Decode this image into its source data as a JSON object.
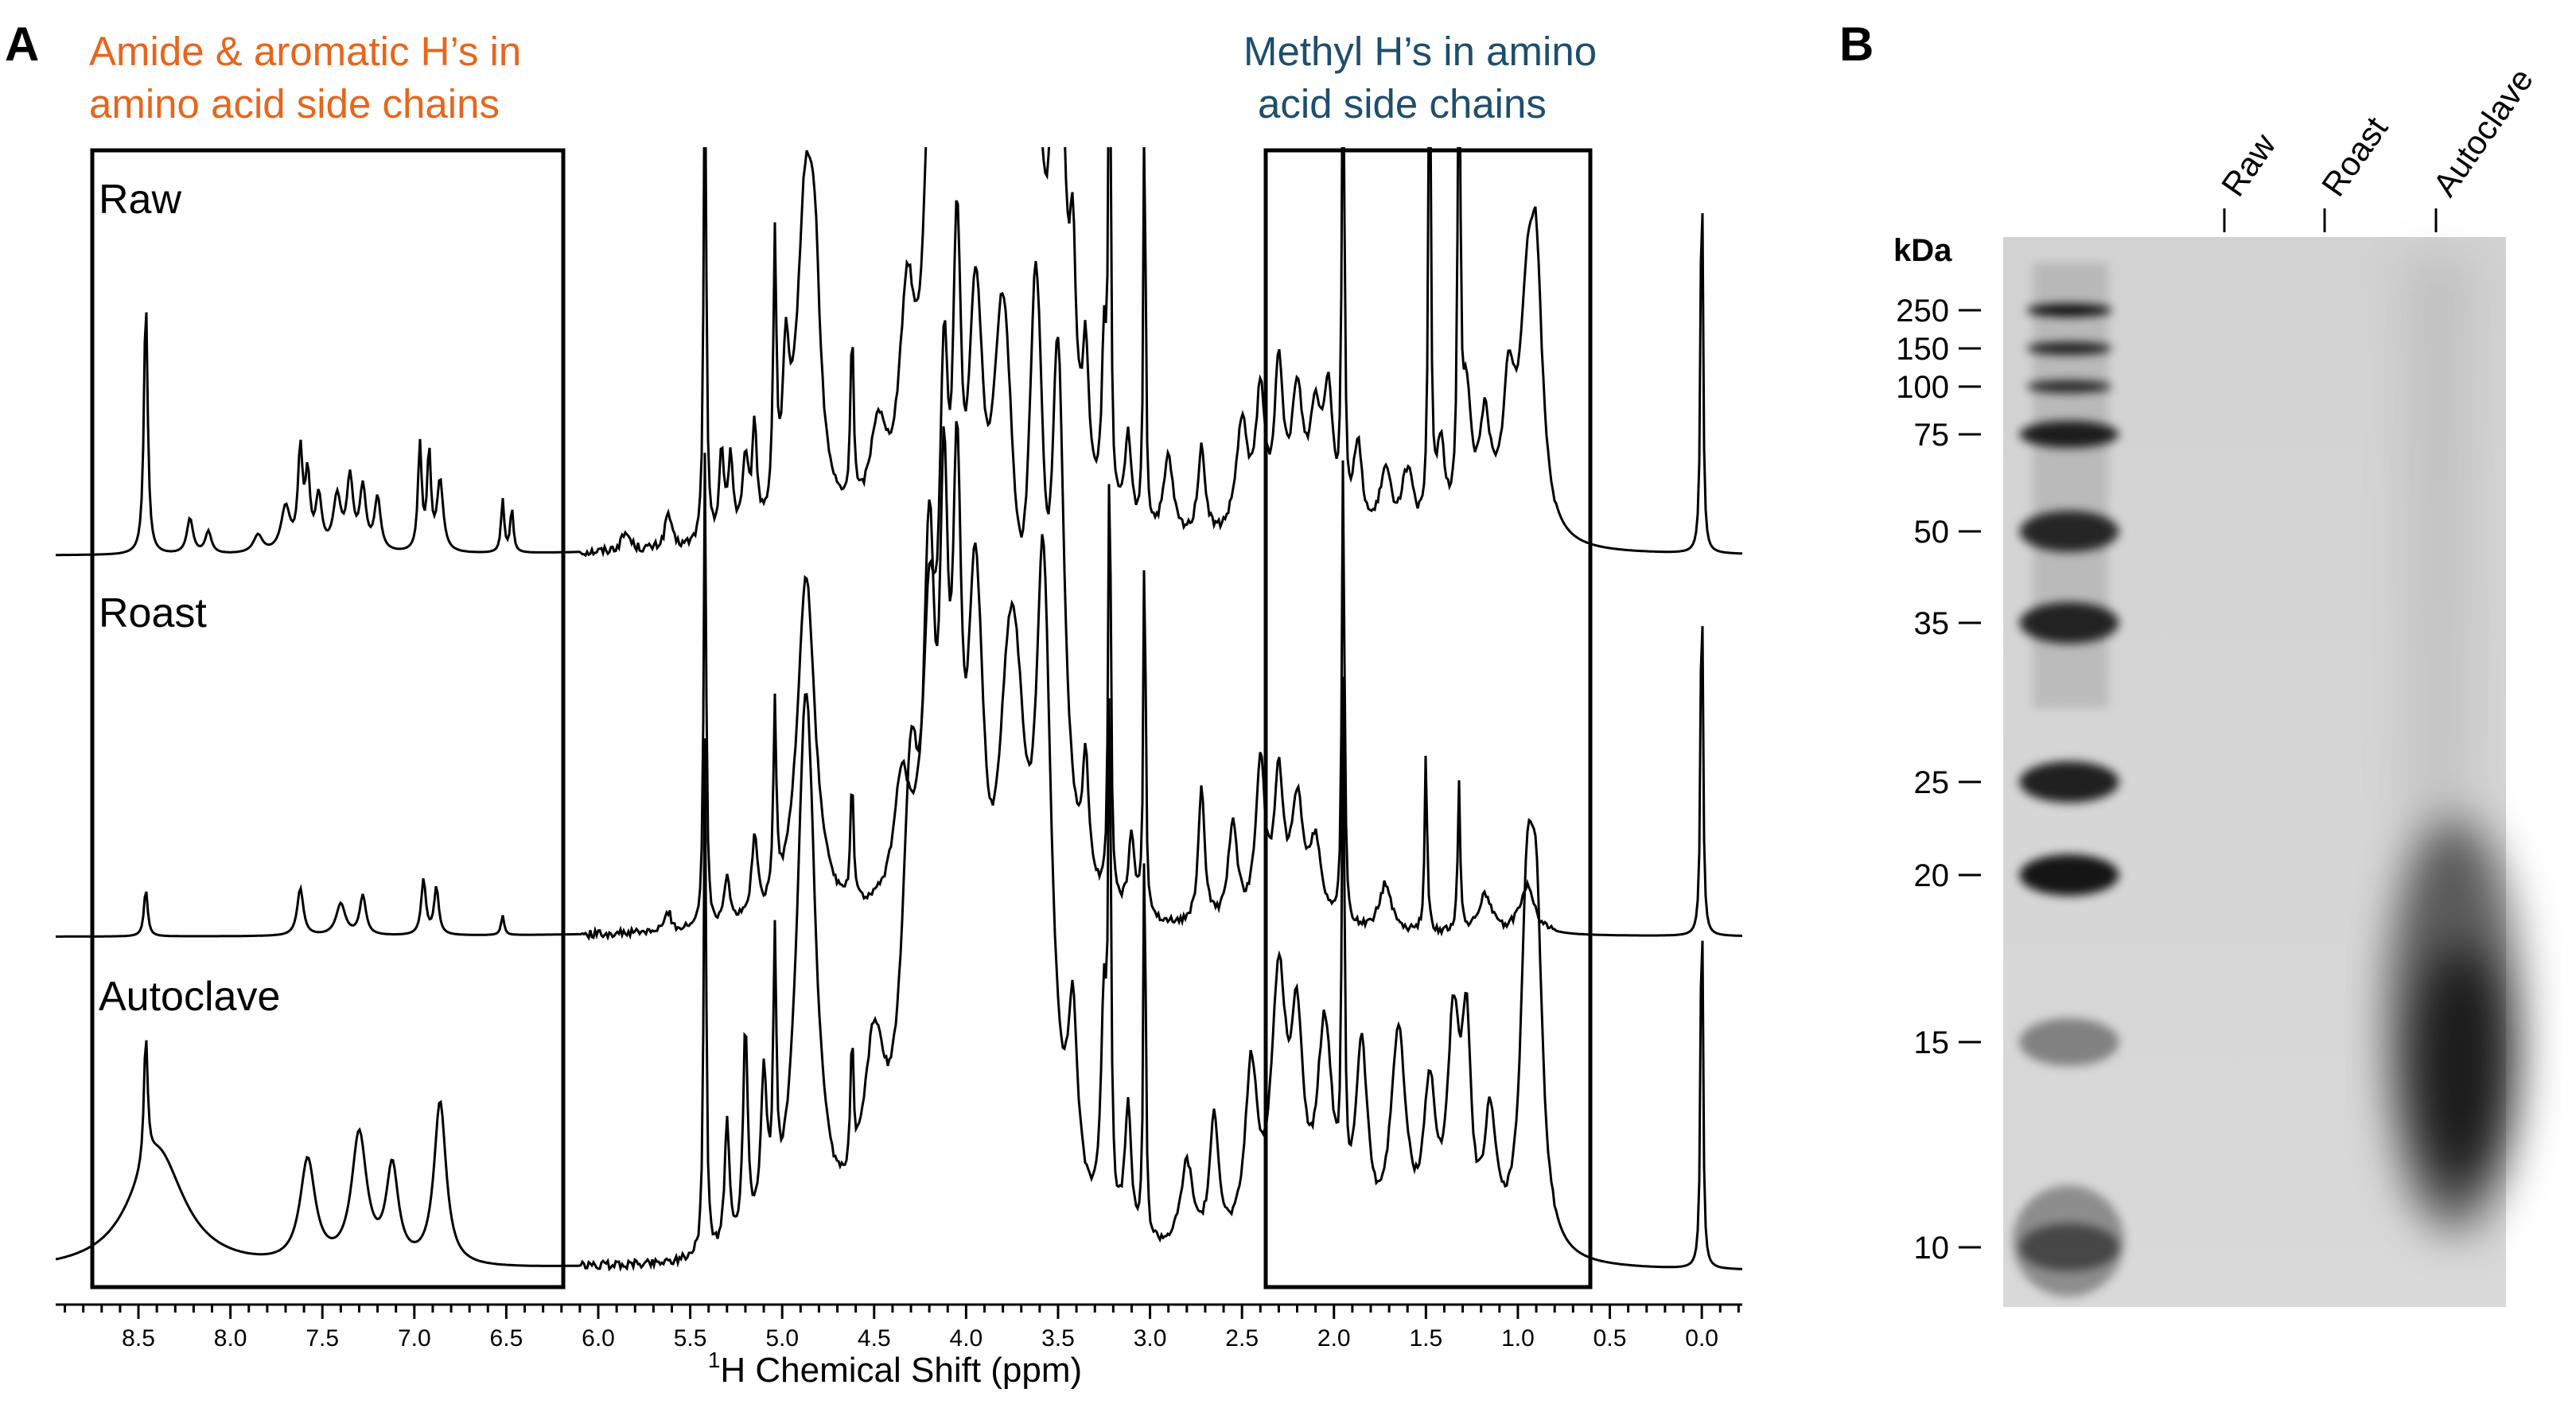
{
  "panel_a": {
    "label": "A",
    "annotation_left_line1": "Amide & aromatic H’s in",
    "annotation_left_line2": "amino acid side chains",
    "annotation_right_line1": "Methyl H’s in amino",
    "annotation_right_line2": "acid side chains",
    "colors": {
      "left_annotation": "#e8651b",
      "right_annotation": "#1d4e6e",
      "trace": "#000000"
    }
  },
  "panel_b": {
    "label": "B",
    "unit_label": "kDa",
    "lanes": [
      "Raw",
      "Roast",
      "Autoclave"
    ]
  },
  "chart_data": [
    {
      "type": "line",
      "title": "",
      "xlabel": "1H Chemical Shift (ppm)",
      "xlabel_sup": "1",
      "xlabel_rest": "H Chemical Shift (ppm)",
      "xlim": [
        8.95,
        -0.22
      ],
      "x_ticks": [
        8.5,
        8.0,
        7.5,
        7.0,
        6.5,
        6.0,
        5.5,
        5.0,
        4.5,
        4.0,
        3.5,
        3.0,
        2.5,
        2.0,
        1.5,
        1.0,
        0.5,
        0.0
      ],
      "x_tick_labels": [
        "8.5",
        "8.0",
        "7.5",
        "7.0",
        "6.5",
        "6.0",
        "5.5",
        "5.0",
        "4.5",
        "4.0",
        "3.5",
        "3.0",
        "2.5",
        "2.0",
        "1.5",
        "1.0",
        "0.5",
        "0.0"
      ],
      "series": [
        {
          "name": "Raw",
          "baseline": 0.02,
          "peaks": [
            [
              8.46,
              0.012,
              0.58
            ],
            [
              8.22,
              0.02,
              0.08
            ],
            [
              8.12,
              0.02,
              0.05
            ],
            [
              7.85,
              0.03,
              0.04
            ],
            [
              7.7,
              0.03,
              0.1
            ],
            [
              7.62,
              0.015,
              0.22
            ],
            [
              7.58,
              0.015,
              0.16
            ],
            [
              7.52,
              0.02,
              0.12
            ],
            [
              7.42,
              0.025,
              0.12
            ],
            [
              7.35,
              0.02,
              0.16
            ],
            [
              7.28,
              0.02,
              0.14
            ],
            [
              7.2,
              0.02,
              0.12
            ],
            [
              6.97,
              0.012,
              0.24
            ],
            [
              6.92,
              0.012,
              0.22
            ],
            [
              6.86,
              0.02,
              0.16
            ],
            [
              6.52,
              0.01,
              0.12
            ],
            [
              6.47,
              0.01,
              0.1
            ],
            [
              5.85,
              0.03,
              0.04
            ],
            [
              5.62,
              0.02,
              0.08
            ],
            [
              5.42,
              0.008,
              1.2
            ],
            [
              5.33,
              0.015,
              0.2
            ],
            [
              5.28,
              0.015,
              0.18
            ],
            [
              5.2,
              0.02,
              0.16
            ],
            [
              5.15,
              0.015,
              0.22
            ],
            [
              5.04,
              0.01,
              0.6
            ],
            [
              4.98,
              0.02,
              0.3
            ],
            [
              4.87,
              0.06,
              0.78
            ],
            [
              4.82,
              0.03,
              0.3
            ],
            [
              4.62,
              0.01,
              0.4
            ],
            [
              4.48,
              0.05,
              0.2
            ],
            [
              4.32,
              0.05,
              0.45
            ],
            [
              4.2,
              0.04,
              0.7
            ],
            [
              4.12,
              0.03,
              1.0
            ],
            [
              4.05,
              0.03,
              1.2
            ],
            [
              3.95,
              0.06,
              1.2
            ],
            [
              3.8,
              0.08,
              1.3
            ],
            [
              3.65,
              0.05,
              1.3
            ],
            [
              3.5,
              0.04,
              1.2
            ],
            [
              3.42,
              0.02,
              0.4
            ],
            [
              3.35,
              0.02,
              0.3
            ],
            [
              3.25,
              0.015,
              0.35
            ],
            [
              3.22,
              0.008,
              1.2
            ],
            [
              3.12,
              0.02,
              0.2
            ],
            [
              3.03,
              0.007,
              1.0
            ],
            [
              2.9,
              0.03,
              0.18
            ],
            [
              2.72,
              0.025,
              0.2
            ],
            [
              2.5,
              0.04,
              0.25
            ],
            [
              2.4,
              0.03,
              0.3
            ],
            [
              2.3,
              0.03,
              0.35
            ],
            [
              2.2,
              0.04,
              0.3
            ],
            [
              2.1,
              0.04,
              0.25
            ],
            [
              2.03,
              0.03,
              0.3
            ],
            [
              1.95,
              0.008,
              1.2
            ],
            [
              1.87,
              0.03,
              0.2
            ],
            [
              1.72,
              0.04,
              0.15
            ],
            [
              1.6,
              0.04,
              0.15
            ],
            [
              1.48,
              0.008,
              1.2
            ],
            [
              1.42,
              0.03,
              0.2
            ],
            [
              1.32,
              0.008,
              1.2
            ],
            [
              1.28,
              0.03,
              0.3
            ],
            [
              1.18,
              0.04,
              0.25
            ],
            [
              1.05,
              0.04,
              0.3
            ],
            [
              0.95,
              0.05,
              0.45
            ],
            [
              0.9,
              0.04,
              0.5
            ],
            [
              0.0,
              0.007,
              0.98
            ]
          ]
        },
        {
          "name": "Roast",
          "baseline": 0.02,
          "peaks": [
            [
              8.46,
              0.012,
              0.12
            ],
            [
              7.62,
              0.02,
              0.12
            ],
            [
              7.4,
              0.03,
              0.08
            ],
            [
              7.28,
              0.02,
              0.1
            ],
            [
              6.95,
              0.015,
              0.14
            ],
            [
              6.88,
              0.015,
              0.12
            ],
            [
              6.52,
              0.01,
              0.05
            ],
            [
              5.62,
              0.02,
              0.05
            ],
            [
              5.42,
              0.008,
              1.2
            ],
            [
              5.3,
              0.02,
              0.12
            ],
            [
              5.15,
              0.02,
              0.2
            ],
            [
              5.04,
              0.01,
              0.48
            ],
            [
              4.87,
              0.06,
              0.88
            ],
            [
              4.62,
              0.01,
              0.3
            ],
            [
              4.35,
              0.05,
              0.3
            ],
            [
              4.2,
              0.04,
              0.6
            ],
            [
              4.12,
              0.03,
              1.0
            ],
            [
              4.05,
              0.03,
              1.2
            ],
            [
              3.95,
              0.06,
              1.2
            ],
            [
              3.8,
              0.08,
              1.3
            ],
            [
              3.62,
              0.05,
              1.3
            ],
            [
              3.5,
              0.04,
              1.2
            ],
            [
              3.35,
              0.02,
              0.3
            ],
            [
              3.22,
              0.008,
              1.2
            ],
            [
              3.1,
              0.02,
              0.2
            ],
            [
              3.03,
              0.007,
              1.0
            ],
            [
              2.72,
              0.02,
              0.35
            ],
            [
              2.55,
              0.03,
              0.25
            ],
            [
              2.4,
              0.03,
              0.4
            ],
            [
              2.3,
              0.03,
              0.35
            ],
            [
              2.2,
              0.04,
              0.3
            ],
            [
              2.1,
              0.04,
              0.2
            ],
            [
              1.95,
              0.008,
              1.2
            ],
            [
              1.72,
              0.04,
              0.12
            ],
            [
              1.5,
              0.008,
              0.45
            ],
            [
              1.32,
              0.008,
              0.38
            ],
            [
              1.18,
              0.04,
              0.1
            ],
            [
              0.95,
              0.05,
              0.12
            ],
            [
              0.0,
              0.007,
              1.0
            ]
          ]
        },
        {
          "name": "Autoclave",
          "baseline": 0.02,
          "peaks": [
            [
              8.46,
              0.012,
              0.3
            ],
            [
              8.4,
              0.18,
              0.28
            ],
            [
              7.58,
              0.05,
              0.24
            ],
            [
              7.3,
              0.05,
              0.3
            ],
            [
              7.12,
              0.04,
              0.22
            ],
            [
              6.86,
              0.04,
              0.38
            ],
            [
              5.42,
              0.008,
              1.2
            ],
            [
              5.3,
              0.015,
              0.3
            ],
            [
              5.2,
              0.015,
              0.5
            ],
            [
              5.1,
              0.02,
              0.35
            ],
            [
              5.04,
              0.01,
              0.6
            ],
            [
              4.87,
              0.06,
              1.3
            ],
            [
              4.62,
              0.01,
              0.3
            ],
            [
              4.5,
              0.07,
              0.4
            ],
            [
              4.3,
              0.06,
              0.9
            ],
            [
              4.2,
              0.04,
              1.2
            ],
            [
              4.12,
              0.03,
              1.2
            ],
            [
              4.05,
              0.03,
              1.2
            ],
            [
              3.95,
              0.06,
              1.2
            ],
            [
              3.75,
              0.1,
              1.3
            ],
            [
              3.58,
              0.05,
              1.3
            ],
            [
              3.42,
              0.03,
              0.4
            ],
            [
              3.25,
              0.02,
              0.5
            ],
            [
              3.22,
              0.008,
              1.2
            ],
            [
              3.12,
              0.02,
              0.3
            ],
            [
              3.03,
              0.007,
              1.0
            ],
            [
              2.8,
              0.04,
              0.2
            ],
            [
              2.65,
              0.03,
              0.3
            ],
            [
              2.45,
              0.04,
              0.4
            ],
            [
              2.3,
              0.05,
              0.6
            ],
            [
              2.2,
              0.04,
              0.45
            ],
            [
              2.05,
              0.05,
              0.5
            ],
            [
              1.95,
              0.008,
              1.2
            ],
            [
              1.85,
              0.04,
              0.45
            ],
            [
              1.65,
              0.05,
              0.5
            ],
            [
              1.48,
              0.04,
              0.35
            ],
            [
              1.35,
              0.04,
              0.5
            ],
            [
              1.28,
              0.03,
              0.45
            ],
            [
              1.15,
              0.04,
              0.3
            ],
            [
              0.95,
              0.04,
              0.72
            ],
            [
              0.9,
              0.04,
              0.68
            ],
            [
              0.0,
              0.007,
              0.98
            ]
          ]
        }
      ]
    },
    {
      "type": "gel",
      "title": "",
      "ylabel": "kDa",
      "markers": [
        250,
        150,
        100,
        75,
        50,
        35,
        25,
        20,
        15,
        10
      ],
      "marker_labels": [
        "250",
        "150",
        "100",
        "75",
        "50",
        "35",
        "25",
        "20",
        "15",
        "10"
      ],
      "lanes": [
        "Raw",
        "Roast",
        "Autoclave"
      ],
      "ladder_band_intensity": [
        0.95,
        0.85,
        0.8,
        0.85,
        0.8,
        0.82,
        0.85,
        0.9,
        0.4,
        0.5
      ],
      "autoclave_smear": {
        "from_kDa": 30,
        "to_kDa": 11,
        "peak_kDa": 14
      }
    }
  ]
}
